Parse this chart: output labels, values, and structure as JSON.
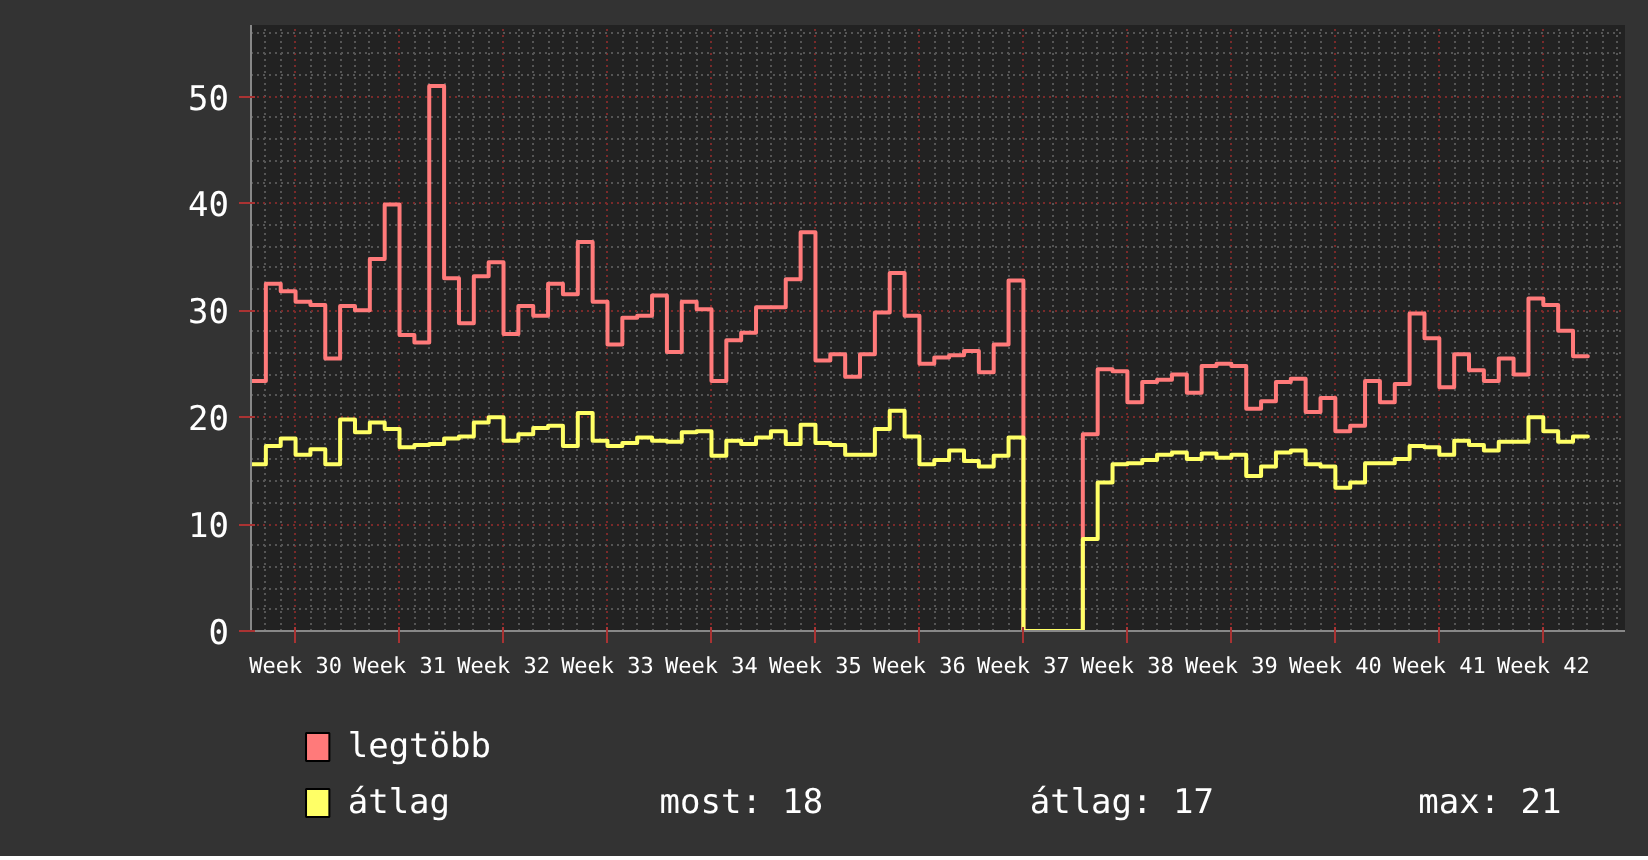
{
  "chart_data": {
    "type": "step",
    "categories": [
      null,
      null,
      null,
      "Week 30",
      null,
      null,
      null,
      null,
      null,
      null,
      "Week 31",
      null,
      null,
      null,
      null,
      null,
      null,
      "Week 32",
      null,
      null,
      null,
      null,
      null,
      null,
      "Week 33",
      null,
      null,
      null,
      null,
      null,
      null,
      "Week 34",
      null,
      null,
      null,
      null,
      null,
      null,
      "Week 35",
      null,
      null,
      null,
      null,
      null,
      null,
      "Week 36",
      null,
      null,
      null,
      null,
      null,
      null,
      "Week 37",
      null,
      null,
      null,
      null,
      null,
      null,
      "Week 38",
      null,
      null,
      null,
      null,
      null,
      null,
      "Week 39",
      null,
      null,
      null,
      null,
      null,
      null,
      "Week 40",
      null,
      null,
      null,
      null,
      null,
      null,
      "Week 41",
      null,
      null,
      null,
      null,
      null,
      null,
      "Week 42",
      null,
      null,
      null
    ],
    "series": [
      {
        "name": "legtöbb",
        "color": "#ff7a7a",
        "values": [
          23.4,
          32.5,
          31.8,
          30.8,
          30.5,
          25.5,
          30.4,
          30.0,
          34.8,
          39.9,
          27.7,
          27.0,
          51.0,
          33.0,
          28.8,
          33.2,
          34.5,
          27.8,
          30.4,
          29.5,
          32.5,
          31.5,
          36.4,
          30.8,
          26.8,
          29.3,
          29.5,
          31.4,
          26.1,
          30.8,
          30.1,
          23.4,
          27.2,
          27.9,
          30.3,
          30.3,
          32.9,
          37.3,
          25.3,
          25.9,
          23.8,
          25.9,
          29.8,
          33.5,
          29.5,
          25.0,
          25.6,
          25.8,
          26.2,
          24.2,
          26.8,
          32.8,
          0,
          0,
          0,
          0,
          18.4,
          24.5,
          24.3,
          21.4,
          23.3,
          23.5,
          24.0,
          22.3,
          24.8,
          25.0,
          24.8,
          20.8,
          21.5,
          23.3,
          23.6,
          20.5,
          21.8,
          18.7,
          19.2,
          23.4,
          21.4,
          23.1,
          29.7,
          27.4,
          22.8,
          25.9,
          24.4,
          23.4,
          25.5,
          24.0,
          31.1,
          30.5,
          28.1,
          25.7,
          25.7
        ]
      },
      {
        "name": "átlag",
        "color": "#ffff66",
        "values": [
          15.6,
          17.3,
          18.0,
          16.5,
          17.0,
          15.6,
          19.8,
          18.6,
          19.5,
          18.9,
          17.2,
          17.4,
          17.5,
          18.0,
          18.2,
          19.5,
          20.0,
          17.8,
          18.4,
          19.0,
          19.2,
          17.3,
          20.4,
          17.8,
          17.3,
          17.6,
          18.1,
          17.8,
          17.7,
          18.6,
          18.7,
          16.4,
          17.8,
          17.5,
          18.1,
          18.7,
          17.5,
          19.3,
          17.6,
          17.4,
          16.5,
          16.5,
          18.9,
          20.6,
          18.2,
          15.6,
          16.0,
          16.9,
          15.9,
          15.4,
          16.4,
          18.1,
          0,
          0,
          0,
          0,
          8.6,
          13.9,
          15.6,
          15.7,
          16.0,
          16.5,
          16.7,
          16.1,
          16.6,
          16.2,
          16.5,
          14.5,
          15.4,
          16.7,
          16.9,
          15.6,
          15.4,
          13.4,
          13.9,
          15.7,
          15.7,
          16.1,
          17.3,
          17.2,
          16.5,
          17.8,
          17.4,
          16.9,
          17.7,
          17.7,
          20.0,
          18.7,
          17.7,
          18.2,
          18.2
        ]
      }
    ],
    "ylim": [
      0,
      56.7
    ],
    "yticks": [
      0,
      10,
      20,
      30,
      40,
      50
    ],
    "grid": true,
    "legend": "bottom",
    "annotations": [
      "most: 18",
      "átlag: 17",
      "max: 21"
    ]
  }
}
